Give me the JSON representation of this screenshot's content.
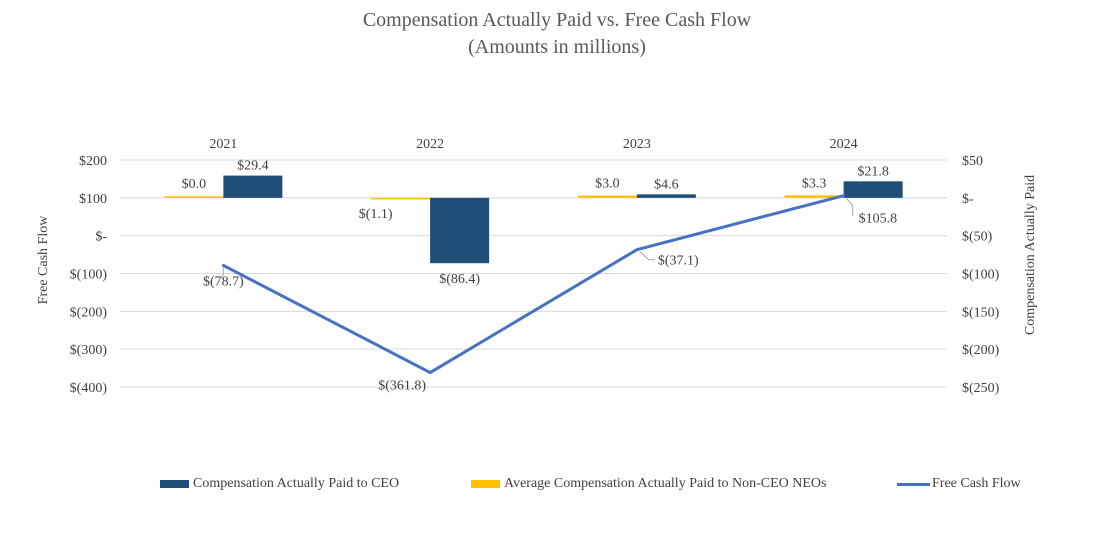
{
  "colors": {
    "ceo": "#1f4e79",
    "neo": "#ffc000",
    "fcf": "#4472c4",
    "grid": "#d9d9d9",
    "text": "#404040"
  },
  "chart_data": {
    "type": "bar+line",
    "title": "Compensation Actually Paid vs. Free Cash Flow",
    "subtitle": "(Amounts in millions)",
    "categories": [
      "2021",
      "2022",
      "2023",
      "2024"
    ],
    "series": [
      {
        "name": "Compensation Actually Paid to CEO",
        "kind": "bar",
        "axis": "right",
        "values": [
          29.4,
          -86.4,
          4.6,
          21.8
        ],
        "labels": [
          "$29.4",
          "$(86.4)",
          "$4.6",
          "$21.8"
        ]
      },
      {
        "name": "Average Compensation Actually Paid to Non-CEO NEOs",
        "kind": "bar",
        "axis": "right",
        "values": [
          0.0,
          -1.1,
          3.0,
          3.3
        ],
        "labels": [
          "$0.0",
          "$(1.1)",
          "$3.0",
          "$3.3"
        ]
      },
      {
        "name": "Free Cash Flow",
        "kind": "line",
        "axis": "left",
        "values": [
          -78.7,
          -361.8,
          -37.1,
          105.8
        ],
        "labels": [
          "$(78.7)",
          "$(361.8)",
          "$(37.1)",
          "$105.8"
        ]
      }
    ],
    "left_axis": {
      "label": "Free Cash Flow",
      "ylim": [
        -400,
        200
      ],
      "ticks": [
        200,
        100,
        0,
        -100,
        -200,
        -300,
        -400
      ],
      "tick_labels": [
        "$200",
        "$100",
        "$-",
        "$(100)",
        "$(200)",
        "$(300)",
        "$(400)"
      ]
    },
    "right_axis": {
      "label": "Compensation Actually Paid",
      "ylim": [
        -250,
        50
      ],
      "ticks": [
        50,
        0,
        -50,
        -100,
        -150,
        -200,
        -250
      ],
      "tick_labels": [
        "$50",
        "$-",
        "$(50)",
        "$(100)",
        "$(150)",
        "$(200)",
        "$(250)"
      ]
    },
    "grid": true,
    "legend_position": "bottom"
  }
}
